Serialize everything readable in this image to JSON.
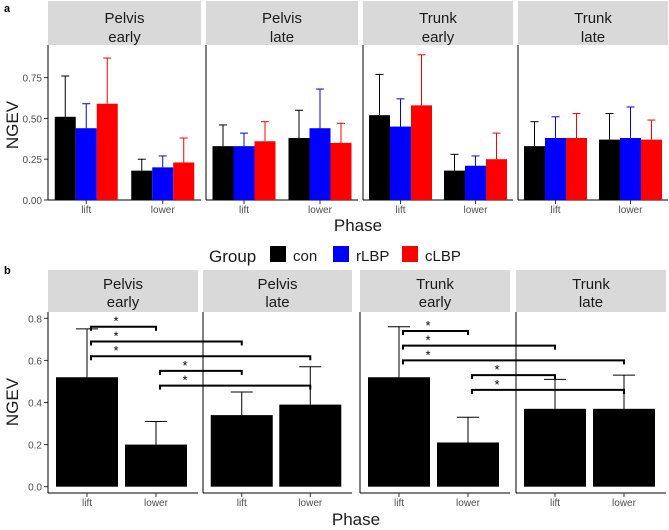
{
  "panel_a": {
    "label": "a",
    "legend": {
      "title": "Group",
      "entries": [
        {
          "name": "con",
          "color": "#000000"
        },
        {
          "name": "rLBP",
          "color": "#0000ff"
        },
        {
          "name": "cLBP",
          "color": "#ff0000"
        }
      ]
    }
  },
  "panel_b": {
    "label": "b"
  },
  "chart_data": [
    {
      "type": "bar",
      "subtype": "grouped bar with error bars, faceted",
      "ylabel": "NGEV",
      "xlabel": "Phase",
      "ylim": [
        0,
        0.95
      ],
      "yticks": [
        0,
        0.25,
        0.5,
        0.75
      ],
      "ytick_labels": [
        "0.00",
        "0.25",
        "0.50",
        "0.75"
      ],
      "categories": [
        "lift",
        "lower"
      ],
      "groups": [
        "con",
        "rLBP",
        "cLBP"
      ],
      "colors": [
        "#000000",
        "#0000ff",
        "#ff0000"
      ],
      "facets": [
        {
          "strip": [
            "Pelvis",
            "early"
          ],
          "series": [
            {
              "name": "con",
              "values": [
                0.51,
                0.18
              ],
              "err": [
                0.76,
                0.25
              ]
            },
            {
              "name": "rLBP",
              "values": [
                0.44,
                0.2
              ],
              "err": [
                0.59,
                0.27
              ]
            },
            {
              "name": "cLBP",
              "values": [
                0.59,
                0.23
              ],
              "err": [
                0.87,
                0.38
              ]
            }
          ]
        },
        {
          "strip": [
            "Pelvis",
            "late"
          ],
          "series": [
            {
              "name": "con",
              "values": [
                0.33,
                0.38
              ],
              "err": [
                0.46,
                0.55
              ]
            },
            {
              "name": "rLBP",
              "values": [
                0.33,
                0.44
              ],
              "err": [
                0.41,
                0.68
              ]
            },
            {
              "name": "cLBP",
              "values": [
                0.36,
                0.35
              ],
              "err": [
                0.48,
                0.47
              ]
            }
          ]
        },
        {
          "strip": [
            "Trunk",
            "early"
          ],
          "series": [
            {
              "name": "con",
              "values": [
                0.52,
                0.18
              ],
              "err": [
                0.77,
                0.28
              ]
            },
            {
              "name": "rLBP",
              "values": [
                0.45,
                0.21
              ],
              "err": [
                0.62,
                0.27
              ]
            },
            {
              "name": "cLBP",
              "values": [
                0.58,
                0.25
              ],
              "err": [
                0.89,
                0.41
              ]
            }
          ]
        },
        {
          "strip": [
            "Trunk",
            "late"
          ],
          "series": [
            {
              "name": "con",
              "values": [
                0.33,
                0.37
              ],
              "err": [
                0.48,
                0.53
              ]
            },
            {
              "name": "rLBP",
              "values": [
                0.38,
                0.38
              ],
              "err": [
                0.51,
                0.57
              ]
            },
            {
              "name": "cLBP",
              "values": [
                0.38,
                0.37
              ],
              "err": [
                0.53,
                0.49
              ]
            }
          ]
        }
      ]
    },
    {
      "type": "bar",
      "subtype": "bar with error bars and significance brackets, faceted",
      "ylabel": "NGEV",
      "xlabel": "Phase",
      "ylim": [
        -0.03,
        0.83
      ],
      "yticks": [
        0,
        0.2,
        0.4,
        0.6,
        0.8
      ],
      "ytick_labels": [
        "0.0",
        "0.2",
        "0.4",
        "0.6",
        "0.8"
      ],
      "categories": [
        "lift",
        "lower"
      ],
      "facets": [
        {
          "strip": [
            "Pelvis",
            "early"
          ],
          "values": [
            0.52,
            0.2
          ],
          "err": [
            0.75,
            0.31
          ]
        },
        {
          "strip": [
            "Pelvis",
            "late"
          ],
          "values": [
            0.34,
            0.39
          ],
          "err": [
            0.45,
            0.57
          ]
        },
        {
          "strip": [
            "Trunk",
            "early"
          ],
          "values": [
            0.52,
            0.21
          ],
          "err": [
            0.76,
            0.33
          ]
        },
        {
          "strip": [
            "Trunk",
            "late"
          ],
          "values": [
            0.37,
            0.37
          ],
          "err": [
            0.51,
            0.53
          ]
        }
      ],
      "significance": [
        {
          "group": "Pelvis",
          "pairs": [
            {
              "from": "early-lift",
              "to": "early-lower",
              "y": 0.76,
              "label": "*"
            },
            {
              "from": "early-lift",
              "to": "late-lift",
              "y": 0.69,
              "label": "*"
            },
            {
              "from": "early-lift",
              "to": "late-lower",
              "y": 0.62,
              "label": "*"
            },
            {
              "from": "early-lower",
              "to": "late-lift",
              "y": 0.55,
              "label": "*"
            },
            {
              "from": "early-lower",
              "to": "late-lower",
              "y": 0.48,
              "label": "*"
            }
          ]
        },
        {
          "group": "Trunk",
          "pairs": [
            {
              "from": "early-lift",
              "to": "early-lower",
              "y": 0.74,
              "label": "*"
            },
            {
              "from": "early-lift",
              "to": "late-lift",
              "y": 0.67,
              "label": "*"
            },
            {
              "from": "early-lift",
              "to": "late-lower",
              "y": 0.6,
              "label": "*"
            },
            {
              "from": "early-lower",
              "to": "late-lift",
              "y": 0.53,
              "label": "*"
            },
            {
              "from": "early-lower",
              "to": "late-lower",
              "y": 0.46,
              "label": "*"
            }
          ]
        }
      ]
    }
  ]
}
